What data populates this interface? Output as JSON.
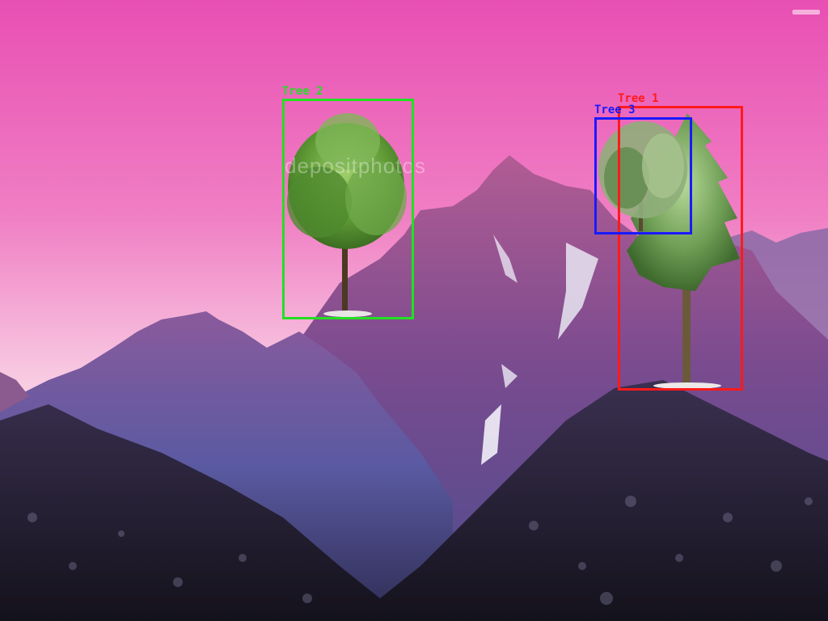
{
  "image": {
    "subject": "mountain-range-with-trees",
    "sky_colors": [
      "#ea53b6",
      "#f6c6e0"
    ],
    "mountain_colors": [
      "#7a3e78",
      "#5a4f9a",
      "#1e1a2e"
    ]
  },
  "detections": [
    {
      "label": "Tree 1",
      "color": "#ff1a1a"
    },
    {
      "label": "Tree 2",
      "color": "#22e022"
    },
    {
      "label": "Tree 3",
      "color": "#1a1aff"
    }
  ],
  "watermark": {
    "text": "depositphotos"
  }
}
